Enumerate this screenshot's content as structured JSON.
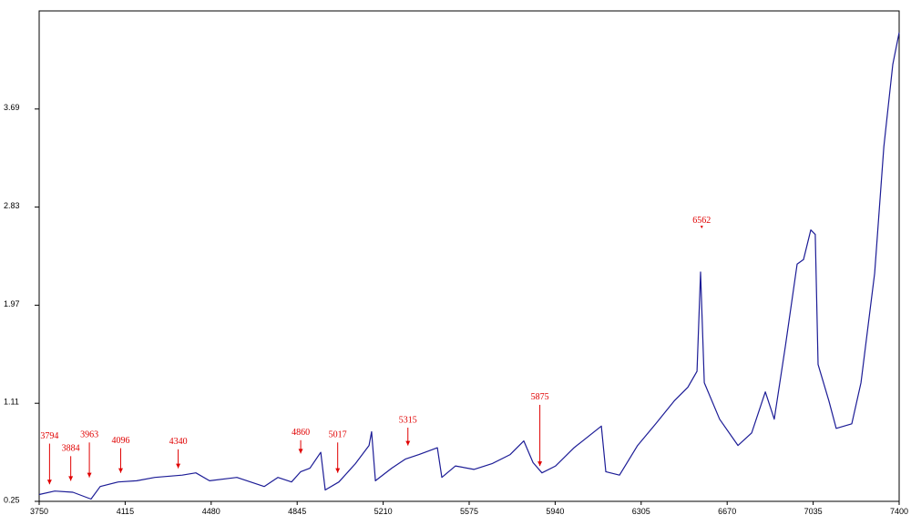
{
  "chart_data": {
    "type": "line",
    "xlim": [
      3750,
      7400
    ],
    "xticks": [
      3750,
      4115,
      4480,
      4845,
      5210,
      5575,
      5940,
      6305,
      6670,
      7035,
      7400
    ],
    "ylim": [
      0.25,
      4.55
    ],
    "yticks": [
      0.25,
      1.11,
      1.97,
      2.83,
      3.69
    ],
    "series": [
      {
        "color": "#1c1c96",
        "x": [
          3750,
          3816,
          3893,
          3970,
          4009,
          4086,
          4164,
          4241,
          4357,
          4415,
          4473,
          4589,
          4705,
          4763,
          4821,
          4860,
          4899,
          4945,
          4964,
          5022,
          5092,
          5150,
          5161,
          5177,
          5246,
          5304,
          5362,
          5440,
          5459,
          5517,
          5595,
          5672,
          5749,
          5807,
          5846,
          5884,
          5942,
          6020,
          6136,
          6155,
          6213,
          6290,
          6367,
          6445,
          6503,
          6542,
          6557,
          6573,
          6638,
          6716,
          6774,
          6832,
          6870,
          6917,
          6967,
          6994,
          7025,
          7044,
          7056,
          7102,
          7133,
          7199,
          7238,
          7296,
          7335,
          7373,
          7400
        ],
        "values": [
          0.31,
          0.34,
          0.33,
          0.27,
          0.38,
          0.42,
          0.43,
          0.46,
          0.48,
          0.5,
          0.43,
          0.46,
          0.38,
          0.46,
          0.42,
          0.51,
          0.54,
          0.68,
          0.35,
          0.42,
          0.58,
          0.74,
          0.86,
          0.43,
          0.54,
          0.62,
          0.66,
          0.72,
          0.46,
          0.56,
          0.53,
          0.58,
          0.66,
          0.78,
          0.59,
          0.5,
          0.56,
          0.72,
          0.91,
          0.51,
          0.48,
          0.74,
          0.93,
          1.13,
          1.25,
          1.39,
          2.26,
          1.29,
          0.97,
          0.74,
          0.85,
          1.21,
          0.97,
          1.61,
          2.33,
          2.37,
          2.63,
          2.59,
          1.45,
          1.13,
          0.89,
          0.93,
          1.29,
          2.25,
          3.36,
          4.08,
          4.36
        ]
      }
    ],
    "annotations": [
      {
        "text": "3794",
        "x": 3794,
        "y": 0.4,
        "ytext": 0.82
      },
      {
        "text": "3884",
        "x": 3884,
        "y": 0.43,
        "ytext": 0.71
      },
      {
        "text": "3963",
        "x": 3963,
        "y": 0.46,
        "ytext": 0.83
      },
      {
        "text": "4096",
        "x": 4096,
        "y": 0.5,
        "ytext": 0.78
      },
      {
        "text": "4340",
        "x": 4340,
        "y": 0.54,
        "ytext": 0.77
      },
      {
        "text": "4860",
        "x": 4860,
        "y": 0.67,
        "ytext": 0.85
      },
      {
        "text": "5017",
        "x": 5017,
        "y": 0.5,
        "ytext": 0.83
      },
      {
        "text": "5315",
        "x": 5315,
        "y": 0.74,
        "ytext": 0.96
      },
      {
        "text": "5875",
        "x": 5875,
        "y": 0.56,
        "ytext": 1.16
      },
      {
        "text": "6562",
        "x": 6562,
        "y": 2.65,
        "ytext": 2.71
      }
    ]
  }
}
